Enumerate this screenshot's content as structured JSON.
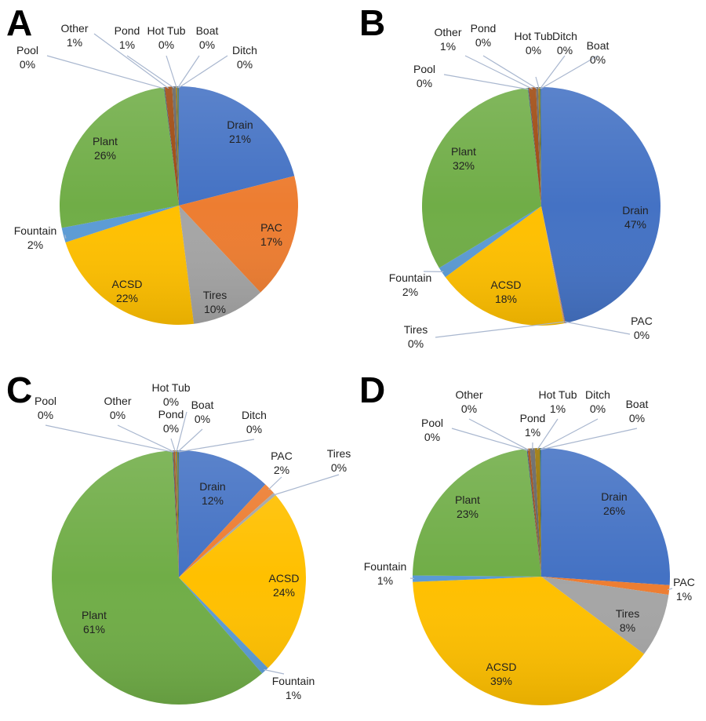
{
  "colors": {
    "Drain": "#4472c4",
    "PAC": "#ed7d31",
    "Tires": "#a5a5a5",
    "ACSD": "#ffc000",
    "Fountain": "#5b9bd5",
    "Plant": "#70ad47",
    "Pool": "#264478",
    "Other": "#9e480e",
    "Pond": "#636363",
    "Hot Tub": "#997300",
    "Boat": "#255e91",
    "Ditch": "#43682b"
  },
  "chart_data": [
    {
      "type": "pie",
      "panel": "A",
      "slices": [
        {
          "label": "Drain",
          "pct": "21%",
          "value": 21
        },
        {
          "label": "PAC",
          "pct": "17%",
          "value": 17
        },
        {
          "label": "Tires",
          "pct": "10%",
          "value": 10
        },
        {
          "label": "ACSD",
          "pct": "22%",
          "value": 22
        },
        {
          "label": "Fountain",
          "pct": "2%",
          "value": 2
        },
        {
          "label": "Plant",
          "pct": "26%",
          "value": 26
        },
        {
          "label": "Pool",
          "pct": "0%",
          "value": 0.1
        },
        {
          "label": "Other",
          "pct": "1%",
          "value": 1
        },
        {
          "label": "Pond",
          "pct": "1%",
          "value": 0.5
        },
        {
          "label": "Hot Tub",
          "pct": "0%",
          "value": 0.2
        },
        {
          "label": "Boat",
          "pct": "0%",
          "value": 0.1
        },
        {
          "label": "Ditch",
          "pct": "0%",
          "value": 0.1
        }
      ]
    },
    {
      "type": "pie",
      "panel": "B",
      "slices": [
        {
          "label": "Drain",
          "pct": "47%",
          "value": 47
        },
        {
          "label": "PAC",
          "pct": "0%",
          "value": 0.1
        },
        {
          "label": "Tires",
          "pct": "0%",
          "value": 0.1
        },
        {
          "label": "ACSD",
          "pct": "18%",
          "value": 18
        },
        {
          "label": "Fountain",
          "pct": "2%",
          "value": 1.5
        },
        {
          "label": "Plant",
          "pct": "32%",
          "value": 32
        },
        {
          "label": "Pool",
          "pct": "0%",
          "value": 0.1
        },
        {
          "label": "Other",
          "pct": "1%",
          "value": 1
        },
        {
          "label": "Pond",
          "pct": "0%",
          "value": 0.3
        },
        {
          "label": "Hot Tub",
          "pct": "0%",
          "value": 0.2
        },
        {
          "label": "Ditch",
          "pct": "0%",
          "value": 0.1
        },
        {
          "label": "Boat",
          "pct": "0%",
          "value": 0.1
        }
      ]
    },
    {
      "type": "pie",
      "panel": "C",
      "slices": [
        {
          "label": "Drain",
          "pct": "12%",
          "value": 12
        },
        {
          "label": "PAC",
          "pct": "2%",
          "value": 1.5
        },
        {
          "label": "Tires",
          "pct": "0%",
          "value": 0.4
        },
        {
          "label": "ACSD",
          "pct": "24%",
          "value": 24
        },
        {
          "label": "Fountain",
          "pct": "1%",
          "value": 1
        },
        {
          "label": "Plant",
          "pct": "61%",
          "value": 61
        },
        {
          "label": "Pool",
          "pct": "0%",
          "value": 0.1
        },
        {
          "label": "Other",
          "pct": "0%",
          "value": 0.2
        },
        {
          "label": "Pond",
          "pct": "0%",
          "value": 0.1
        },
        {
          "label": "Hot Tub",
          "pct": "0%",
          "value": 0.2
        },
        {
          "label": "Boat",
          "pct": "0%",
          "value": 0.1
        },
        {
          "label": "Ditch",
          "pct": "0%",
          "value": 0.1
        }
      ]
    },
    {
      "type": "pie",
      "panel": "D",
      "slices": [
        {
          "label": "Drain",
          "pct": "26%",
          "value": 26
        },
        {
          "label": "PAC",
          "pct": "1%",
          "value": 1.2
        },
        {
          "label": "Tires",
          "pct": "8%",
          "value": 8
        },
        {
          "label": "ACSD",
          "pct": "39%",
          "value": 39
        },
        {
          "label": "Fountain",
          "pct": "1%",
          "value": 0.8
        },
        {
          "label": "Plant",
          "pct": "23%",
          "value": 23
        },
        {
          "label": "Pool",
          "pct": "0%",
          "value": 0.1
        },
        {
          "label": "Other",
          "pct": "0%",
          "value": 0.3
        },
        {
          "label": "Pond",
          "pct": "1%",
          "value": 0.6
        },
        {
          "label": "Hot Tub",
          "pct": "1%",
          "value": 0.6
        },
        {
          "label": "Ditch",
          "pct": "0%",
          "value": 0.1
        },
        {
          "label": "Boat",
          "pct": "0%",
          "value": 0.1
        }
      ]
    }
  ]
}
